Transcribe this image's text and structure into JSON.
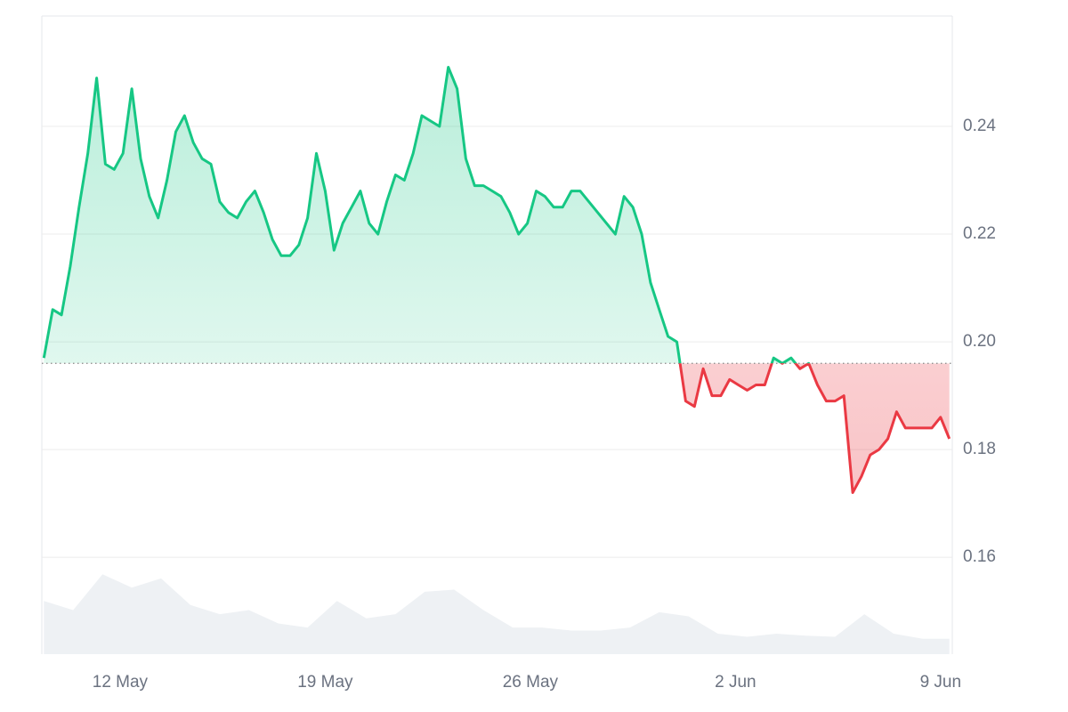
{
  "chart_data": {
    "type": "line",
    "x": [
      9.4,
      9.7,
      10.0,
      10.3,
      10.6,
      10.9,
      11.2,
      11.5,
      11.8,
      12.1,
      12.4,
      12.7,
      13.0,
      13.3,
      13.6,
      13.9,
      14.2,
      14.5,
      14.8,
      15.1,
      15.4,
      15.7,
      16.0,
      16.3,
      16.6,
      16.9,
      17.2,
      17.5,
      17.8,
      18.1,
      18.4,
      18.7,
      19.0,
      19.3,
      19.6,
      19.9,
      20.2,
      20.5,
      20.8,
      21.1,
      21.4,
      21.7,
      22.0,
      22.3,
      22.6,
      22.9,
      23.2,
      23.5,
      23.8,
      24.1,
      24.4,
      24.7,
      25.0,
      25.3,
      25.6,
      25.9,
      26.2,
      26.5,
      26.8,
      27.1,
      27.4,
      27.7,
      28.0,
      28.3,
      28.6,
      28.9,
      29.2,
      29.5,
      29.8,
      30.1,
      30.4,
      30.7,
      31.0,
      31.3,
      31.6,
      31.9,
      32.2,
      32.5,
      32.8,
      33.1,
      33.4,
      33.7,
      34.0,
      34.3,
      34.6,
      34.9,
      35.2,
      35.5,
      35.8,
      36.1,
      36.4,
      36.7,
      37.0,
      37.3,
      37.6,
      37.9,
      38.2,
      38.5,
      38.8,
      39.1,
      39.4,
      39.7,
      40.0,
      40.3
    ],
    "series": [
      {
        "color": "#16c784",
        "below_color": "#ea3943",
        "values": [
          0.197,
          0.206,
          0.205,
          0.214,
          0.225,
          0.235,
          0.249,
          0.233,
          0.232,
          0.235,
          0.247,
          0.234,
          0.227,
          0.223,
          0.23,
          0.239,
          0.242,
          0.237,
          0.234,
          0.233,
          0.226,
          0.224,
          0.223,
          0.226,
          0.228,
          0.224,
          0.219,
          0.216,
          0.216,
          0.218,
          0.223,
          0.235,
          0.228,
          0.217,
          0.222,
          0.225,
          0.228,
          0.222,
          0.22,
          0.226,
          0.231,
          0.23,
          0.235,
          0.242,
          0.241,
          0.24,
          0.251,
          0.247,
          0.234,
          0.229,
          0.229,
          0.228,
          0.227,
          0.224,
          0.22,
          0.222,
          0.228,
          0.227,
          0.225,
          0.225,
          0.228,
          0.228,
          0.226,
          0.224,
          0.222,
          0.22,
          0.227,
          0.225,
          0.22,
          0.211,
          0.206,
          0.201,
          0.2,
          0.189,
          0.188,
          0.195,
          0.19,
          0.19,
          0.193,
          0.192,
          0.191,
          0.192,
          0.192,
          0.197,
          0.196,
          0.197,
          0.195,
          0.196,
          0.192,
          0.189,
          0.189,
          0.19,
          0.172,
          0.175,
          0.179,
          0.18,
          0.182,
          0.187,
          0.184,
          0.184,
          0.184,
          0.184,
          0.186,
          0.182
        ]
      }
    ],
    "baseline": 0.196,
    "volume": {
      "color": "#eef1f4",
      "x": [
        9.4,
        10.4,
        11.4,
        12.4,
        13.4,
        14.4,
        15.4,
        16.4,
        17.4,
        18.4,
        19.4,
        20.4,
        21.4,
        22.4,
        23.4,
        24.4,
        25.4,
        26.4,
        27.4,
        28.4,
        29.4,
        30.4,
        31.4,
        32.4,
        33.4,
        34.4,
        35.4,
        36.4,
        37.4,
        38.4,
        39.4,
        40.3
      ],
      "values": [
        52,
        43,
        78,
        65,
        74,
        48,
        39,
        43,
        30,
        26,
        52,
        35,
        39,
        61,
        63,
        43,
        26,
        26,
        23,
        23,
        26,
        41,
        37,
        20,
        17,
        20,
        18,
        17,
        39,
        20,
        15,
        15
      ],
      "ylim": [
        0,
        100
      ]
    },
    "xlim": [
      9.33,
      40.4
    ],
    "xticks": [
      {
        "value": 12,
        "label": "12 May"
      },
      {
        "value": 19,
        "label": "19 May"
      },
      {
        "value": 26,
        "label": "26 May"
      },
      {
        "value": 33,
        "label": "2 Jun"
      },
      {
        "value": 40,
        "label": "9 Jun"
      }
    ],
    "ylim": [
      0.142,
      0.2605
    ],
    "yticks": [
      0.16,
      0.18,
      {
        "value": 0.2,
        "label": "0.20"
      },
      0.22,
      0.24
    ],
    "grid": true
  }
}
